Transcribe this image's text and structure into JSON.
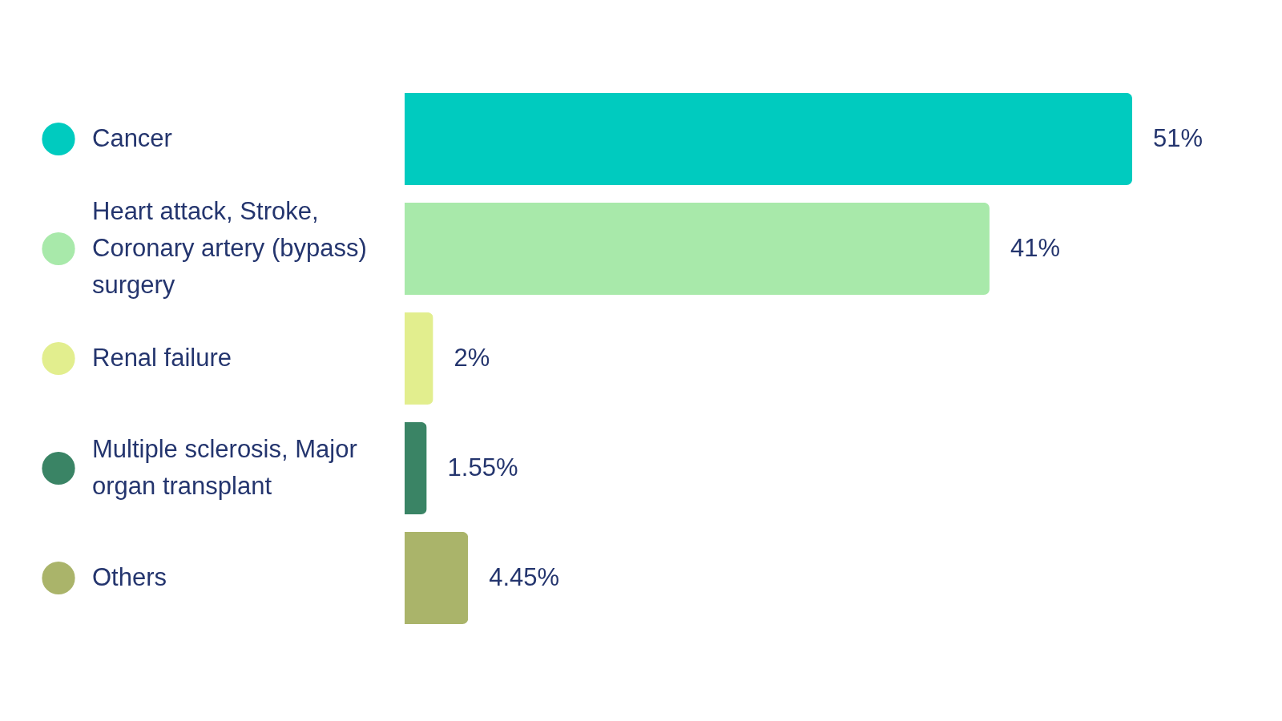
{
  "chart_data": {
    "type": "bar",
    "orientation": "horizontal",
    "categories": [
      "Cancer",
      "Heart attack, Stroke, Coronary artery (bypass) surgery",
      "Renal failure",
      "Multiple sclerosis, Major organ transplant",
      "Others"
    ],
    "values": [
      51,
      41,
      2,
      1.55,
      4.45
    ],
    "colors": [
      "#00cbbf",
      "#a8e9aa",
      "#e2ee8e",
      "#3a8465",
      "#aab46a"
    ],
    "value_labels": [
      "51%",
      "41%",
      "2%",
      "1.55%",
      "4.45%"
    ]
  }
}
